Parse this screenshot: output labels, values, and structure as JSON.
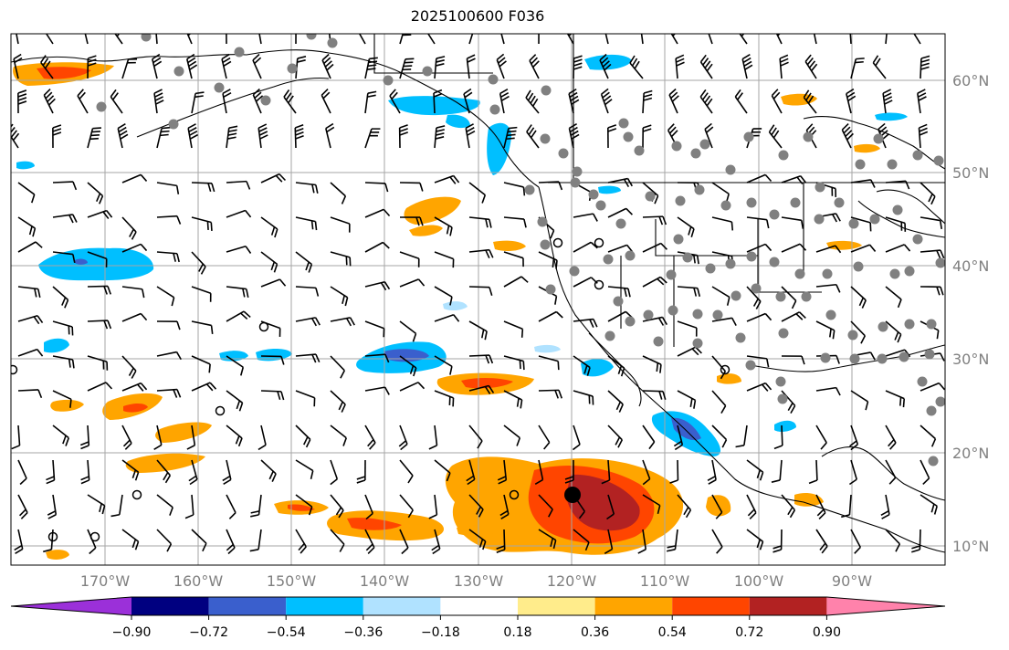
{
  "title": "2025100600 F036",
  "map": {
    "lon_labels": [
      "170°W",
      "160°W",
      "150°W",
      "140°W",
      "130°W",
      "120°W",
      "110°W",
      "100°W",
      "90°W"
    ],
    "lat_labels": [
      "60°N",
      "50°N",
      "40°N",
      "30°N",
      "20°N",
      "10°N"
    ],
    "grid": true
  },
  "colorbar": {
    "ticks": [
      "−0.90",
      "−0.72",
      "−0.54",
      "−0.36",
      "−0.18",
      "0.18",
      "0.36",
      "0.54",
      "0.72",
      "0.90"
    ],
    "colors": {
      "under": "#9b30d9",
      "bins": [
        "#000080",
        "#3a5fcd",
        "#00bfff",
        "#b0e2ff",
        "#ffffff",
        "#ffec8b",
        "#ffa500",
        "#ff4500",
        "#b22222"
      ],
      "over": "#ff82ab"
    }
  },
  "icons": {
    "wind_barb": "wind-barb-icon",
    "station_filled": "station-filled-circle-icon",
    "station_open": "station-open-circle-icon",
    "highlight": "highlighted-point-icon"
  }
}
